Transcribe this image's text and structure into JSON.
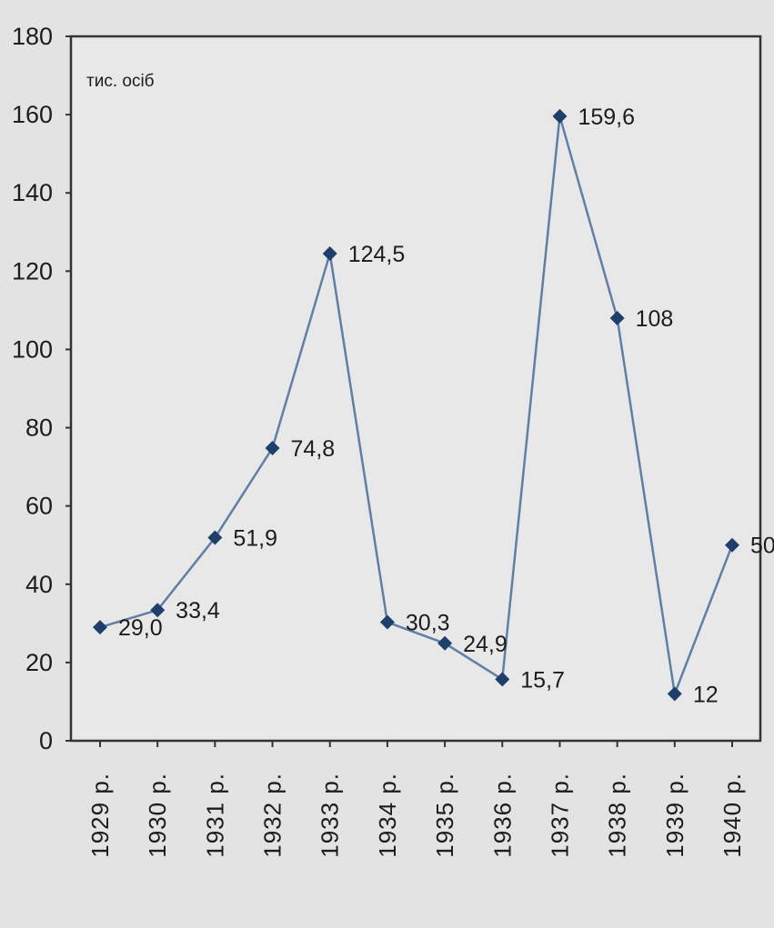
{
  "chart_data": {
    "type": "line",
    "title": "",
    "xlabel": "",
    "ylabel": "тис. осіб",
    "ylim": [
      0,
      180
    ],
    "y_ticks": [
      "0",
      "20",
      "40",
      "60",
      "80",
      "100",
      "120",
      "140",
      "160",
      "180"
    ],
    "categories": [
      "1929 р.",
      "1930 р.",
      "1931 р.",
      "1932 р.",
      "1933 р.",
      "1934 р.",
      "1935 р.",
      "1936 р.",
      "1937 р.",
      "1938 р.",
      "1939 р.",
      "1940 р."
    ],
    "series": [
      {
        "values": [
          29.0,
          33.4,
          51.9,
          74.8,
          124.5,
          30.3,
          24.9,
          15.7,
          159.6,
          108,
          12,
          50
        ],
        "data_labels": [
          "29,0",
          "33,4",
          "51,9",
          "74,8",
          "124,5",
          "30,3",
          "24,9",
          "15,7",
          "159,6",
          "108",
          "12",
          "50"
        ]
      }
    ],
    "grid": false,
    "legend": "none",
    "colors": {
      "background": "#e3e3e3",
      "plot_area": "#e8e8e8",
      "line": "#5f7fa5",
      "marker": "#1f3f6b",
      "axis": "#333333"
    }
  }
}
